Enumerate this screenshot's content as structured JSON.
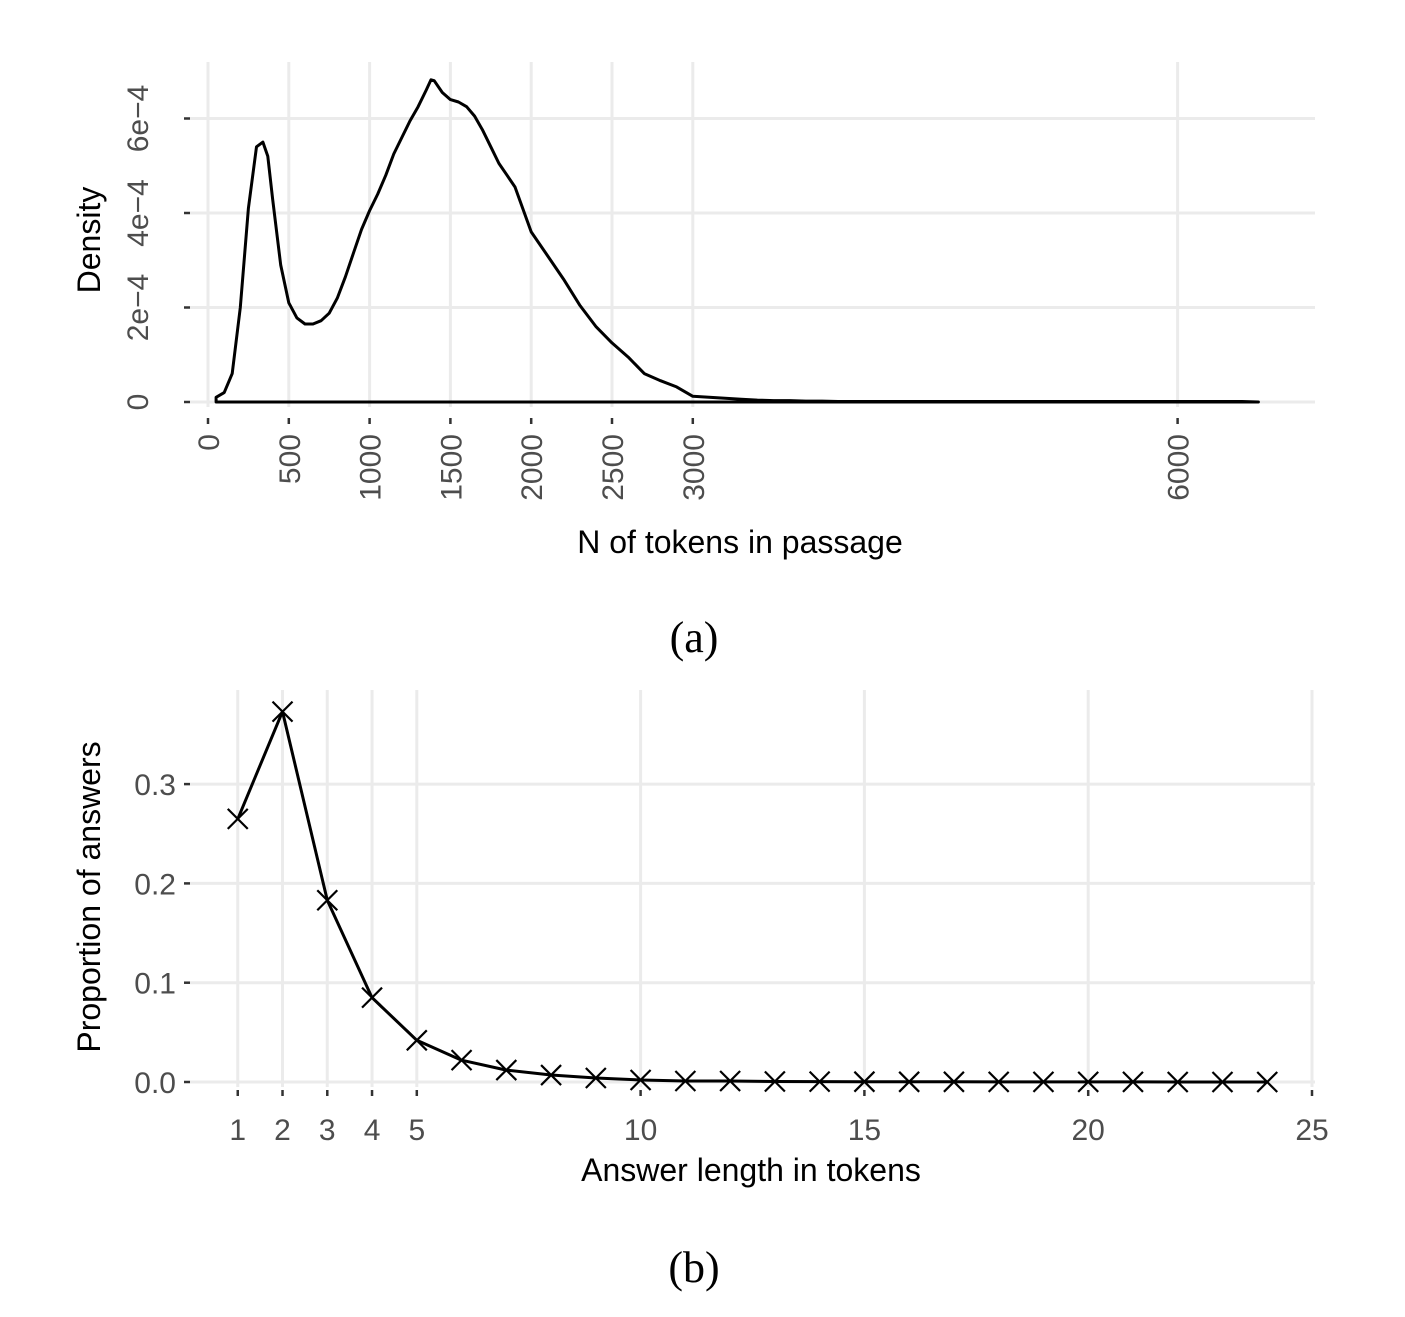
{
  "chart_data": [
    {
      "id": "a",
      "type": "line",
      "kind": "density",
      "caption": "(a)",
      "xlabel": "N of tokens in passage",
      "ylabel": "Density",
      "xlim": [
        0,
        6800
      ],
      "ylim": [
        0,
        0.00068
      ],
      "xticks": [
        0,
        500,
        1000,
        1500,
        2000,
        2500,
        3000,
        6000
      ],
      "xtick_labels": [
        "0",
        "500",
        "1000",
        "1500",
        "2000",
        "2500",
        "3000",
        "6000"
      ],
      "yticks": [
        0,
        0.0002,
        0.0004,
        0.0006
      ],
      "ytick_labels": [
        "0",
        "2e−4",
        "4e−4",
        "6e−4"
      ],
      "grid": true,
      "series": [
        {
          "name": "density",
          "x": [
            50,
            100,
            150,
            200,
            250,
            300,
            340,
            370,
            400,
            450,
            500,
            550,
            600,
            650,
            700,
            750,
            800,
            850,
            900,
            950,
            1000,
            1050,
            1100,
            1150,
            1200,
            1250,
            1300,
            1350,
            1380,
            1400,
            1450,
            1500,
            1550,
            1600,
            1650,
            1700,
            1750,
            1800,
            1850,
            1900,
            2000,
            2100,
            2200,
            2300,
            2400,
            2500,
            2600,
            2700,
            2800,
            2900,
            3000,
            3100,
            3200,
            3300,
            3400,
            3500,
            3600,
            3700,
            3800,
            3900,
            4000,
            4200,
            4400,
            4600,
            4800,
            5000,
            5200,
            5400,
            5600,
            5800,
            6000,
            6200,
            6400,
            6500
          ],
          "y": [
            1e-05,
            2e-05,
            6e-05,
            0.0002,
            0.00041,
            0.00054,
            0.00055,
            0.00052,
            0.00043,
            0.00029,
            0.00021,
            0.000178,
            0.000165,
            0.000165,
            0.000172,
            0.000188,
            0.00022,
            0.000265,
            0.000315,
            0.000365,
            0.000405,
            0.00044,
            0.00048,
            0.000525,
            0.00056,
            0.000595,
            0.000625,
            0.00066,
            0.000682,
            0.00068,
            0.000655,
            0.00064,
            0.000635,
            0.000625,
            0.000605,
            0.000575,
            0.00054,
            0.000505,
            0.00048,
            0.000455,
            0.00036,
            0.00031,
            0.00026,
            0.000205,
            0.00016,
            0.000125,
            9.5e-05,
            6e-05,
            4.5e-05,
            3.2e-05,
            1.2e-05,
            1e-05,
            8e-06,
            6e-06,
            4e-06,
            3e-06,
            3e-06,
            2e-06,
            2e-06,
            1e-06,
            1e-06,
            1e-06,
            1e-06,
            1e-06,
            1e-06,
            1e-06,
            1e-06,
            1e-06,
            1e-06,
            1e-06,
            1e-06,
            1e-06,
            1e-06,
            0.0
          ]
        }
      ]
    },
    {
      "id": "b",
      "type": "line",
      "kind": "line-with-markers",
      "caption": "(b)",
      "xlabel": "Answer length in tokens",
      "ylabel": "Proportion of answers",
      "xlim": [
        0,
        25
      ],
      "ylim": [
        0,
        0.375
      ],
      "xticks": [
        1,
        2,
        3,
        4,
        5,
        10,
        15,
        20,
        25
      ],
      "xtick_labels": [
        "1",
        "2",
        "3",
        "4",
        "5",
        "10",
        "15",
        "20",
        "25"
      ],
      "yticks": [
        0.0,
        0.1,
        0.2,
        0.3
      ],
      "ytick_labels": [
        "0.0",
        "0.1",
        "0.2",
        "0.3"
      ],
      "grid": true,
      "marker": "x",
      "series": [
        {
          "name": "proportion",
          "x": [
            1,
            2,
            3,
            4,
            5,
            6,
            7,
            8,
            9,
            10,
            11,
            12,
            13,
            14,
            15,
            16,
            17,
            18,
            19,
            20,
            21,
            22,
            23,
            24
          ],
          "y": [
            0.265,
            0.373,
            0.183,
            0.085,
            0.042,
            0.022,
            0.012,
            0.007,
            0.004,
            0.002,
            0.001,
            0.001,
            0.0005,
            0.0004,
            0.0003,
            0.0002,
            0.0002,
            0.0001,
            0.0001,
            0.0001,
            0.0001,
            0.0,
            0.0,
            0.0
          ]
        }
      ]
    }
  ]
}
